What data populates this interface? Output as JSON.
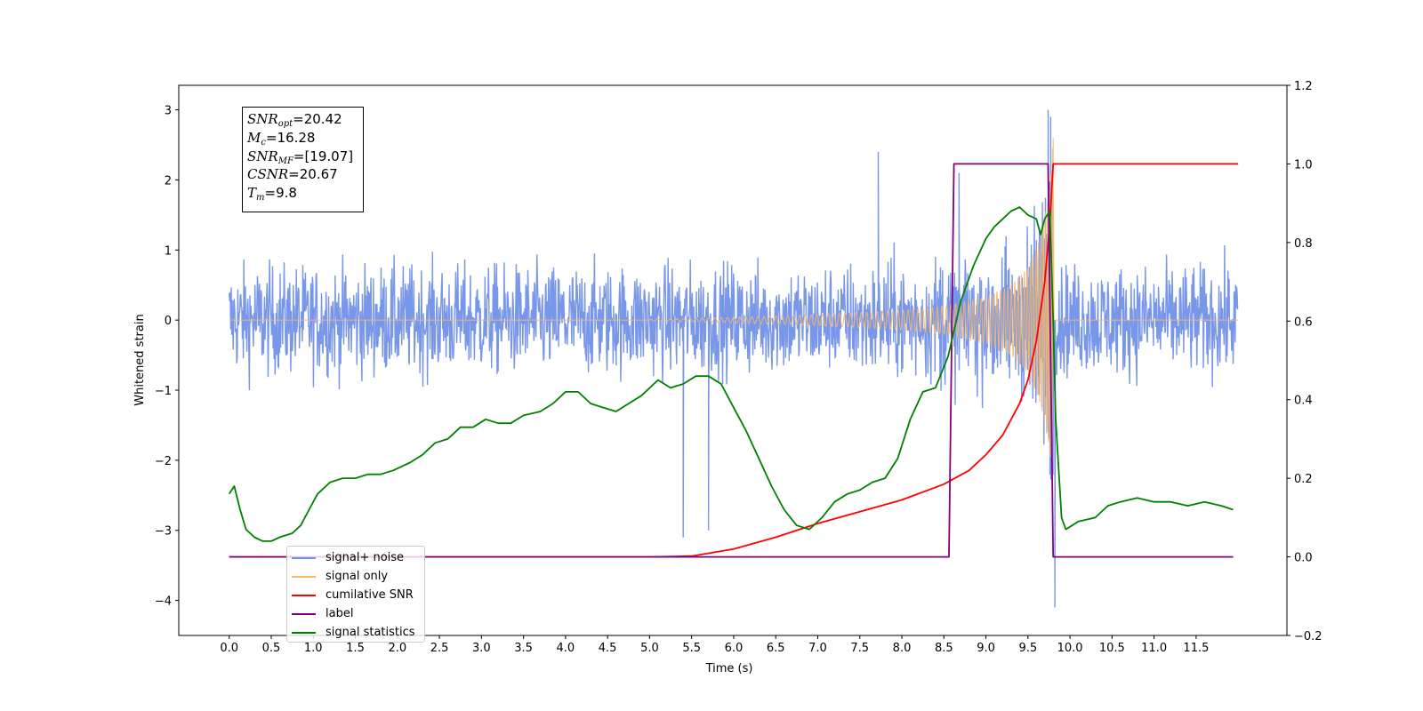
{
  "chart_data": {
    "type": "line",
    "xlabel": "Time (s)",
    "ylabel": "Whitened strain",
    "xlim": [
      -0.6,
      12.58
    ],
    "ylim": [
      -4.5,
      3.35
    ],
    "y2lim": [
      -0.2,
      1.2
    ],
    "x_ticks": [
      "0.0",
      "0.5",
      "1.0",
      "1.5",
      "2.0",
      "2.5",
      "3.0",
      "3.5",
      "4.0",
      "4.5",
      "5.0",
      "5.5",
      "6.0",
      "6.5",
      "7.0",
      "7.5",
      "8.0",
      "8.5",
      "9.0",
      "9.5",
      "10.0",
      "10.5",
      "11.0",
      "11.5"
    ],
    "y_ticks": [
      "3",
      "2",
      "1",
      "0",
      "−1",
      "−2",
      "−3",
      "−4"
    ],
    "y2_ticks": [
      "1.2",
      "1.0",
      "0.8",
      "0.6",
      "0.4",
      "0.2",
      "0.0",
      "−0.2"
    ],
    "annotation": {
      "snr_opt": {
        "sym": "SNR",
        "sub": "opt",
        "value": "=20.42"
      },
      "mc": {
        "sym": "M",
        "sub": "c",
        "value": "=16.28"
      },
      "snr_mf": {
        "sym": "SNR",
        "sub": "MF",
        "value": "=[19.07]"
      },
      "csnr": {
        "sym": "CSNR",
        "value": "=20.67"
      },
      "tm": {
        "sym": "T",
        "sub": "m",
        "value": "=9.8"
      }
    },
    "legend_position": "lower left",
    "grid": false,
    "series": [
      {
        "name": "signal+ noise",
        "axis": "left",
        "color": "#7291e8",
        "description": "whitened noise plus chirp, spans 0 to 12 s, amplitude mostly within ±1.5 with spikes to ±2.5",
        "envelope_x": [
          0,
          9.6,
          9.7,
          9.74,
          9.8,
          12
        ],
        "extremes": [
          [
            9.74,
            3.0
          ],
          [
            9.77,
            2.9
          ],
          [
            9.82,
            -4.1
          ],
          [
            5.4,
            -3.1
          ],
          [
            5.7,
            -3.0
          ],
          [
            7.72,
            2.4
          ],
          [
            8.68,
            2.1
          ]
        ]
      },
      {
        "name": "signal only",
        "axis": "left",
        "color": "#f6b86a",
        "description": "chirp waveform growing from ~0 near 5 s to peak amplitude ~2.6 at 9.8 s, zero after merger",
        "x": [
          5.0,
          6.0,
          7.0,
          8.0,
          8.5,
          9.0,
          9.3,
          9.5,
          9.65,
          9.75,
          9.8
        ],
        "amplitude": [
          0.01,
          0.04,
          0.08,
          0.14,
          0.2,
          0.33,
          0.5,
          0.75,
          1.2,
          1.8,
          2.6
        ]
      },
      {
        "name": "cumilative SNR",
        "axis": "right",
        "color": "#ff0000",
        "x": [
          0,
          5,
          5.5,
          6.0,
          6.5,
          7.0,
          7.5,
          8.0,
          8.5,
          8.8,
          9.0,
          9.2,
          9.4,
          9.5,
          9.6,
          9.7,
          9.76,
          9.8,
          12
        ],
        "y": [
          0,
          0,
          0.002,
          0.02,
          0.05,
          0.085,
          0.115,
          0.145,
          0.185,
          0.22,
          0.26,
          0.31,
          0.39,
          0.45,
          0.55,
          0.7,
          0.85,
          1.0,
          1.0
        ]
      },
      {
        "name": "label",
        "axis": "right",
        "color": "#800080",
        "x": [
          0,
          8.56,
          8.62,
          9.74,
          9.8,
          11.94
        ],
        "y": [
          0,
          0,
          1,
          1,
          0,
          0
        ]
      },
      {
        "name": "signal statistics",
        "axis": "right",
        "color": "#008000",
        "x": [
          0,
          0.06,
          0.13,
          0.2,
          0.3,
          0.4,
          0.5,
          0.6,
          0.75,
          0.85,
          0.95,
          1.05,
          1.2,
          1.35,
          1.5,
          1.65,
          1.8,
          1.95,
          2.05,
          2.15,
          2.3,
          2.45,
          2.6,
          2.75,
          2.9,
          3.05,
          3.2,
          3.35,
          3.5,
          3.7,
          3.85,
          4.0,
          4.15,
          4.3,
          4.45,
          4.6,
          4.75,
          4.9,
          5.1,
          5.25,
          5.4,
          5.55,
          5.7,
          5.85,
          6.0,
          6.15,
          6.3,
          6.45,
          6.6,
          6.75,
          6.9,
          7.05,
          7.2,
          7.35,
          7.5,
          7.65,
          7.8,
          7.95,
          8.1,
          8.25,
          8.4,
          8.55,
          8.7,
          8.85,
          9.0,
          9.1,
          9.2,
          9.3,
          9.4,
          9.5,
          9.6,
          9.65,
          9.7,
          9.76,
          9.8,
          9.83,
          9.9,
          9.95,
          10.1,
          10.3,
          10.45,
          10.6,
          10.8,
          11.0,
          11.2,
          11.4,
          11.6,
          11.8,
          11.94
        ],
        "y": [
          0.16,
          0.18,
          0.12,
          0.07,
          0.05,
          0.04,
          0.04,
          0.05,
          0.06,
          0.08,
          0.12,
          0.16,
          0.19,
          0.2,
          0.2,
          0.21,
          0.21,
          0.22,
          0.23,
          0.24,
          0.26,
          0.29,
          0.3,
          0.33,
          0.33,
          0.35,
          0.34,
          0.34,
          0.36,
          0.37,
          0.39,
          0.42,
          0.42,
          0.39,
          0.38,
          0.37,
          0.39,
          0.41,
          0.45,
          0.43,
          0.44,
          0.46,
          0.46,
          0.44,
          0.38,
          0.32,
          0.25,
          0.18,
          0.12,
          0.08,
          0.07,
          0.1,
          0.14,
          0.16,
          0.17,
          0.19,
          0.2,
          0.25,
          0.35,
          0.42,
          0.43,
          0.51,
          0.65,
          0.74,
          0.81,
          0.84,
          0.86,
          0.88,
          0.89,
          0.87,
          0.86,
          0.82,
          0.86,
          0.88,
          0.6,
          0.35,
          0.1,
          0.07,
          0.09,
          0.1,
          0.13,
          0.14,
          0.15,
          0.14,
          0.14,
          0.13,
          0.14,
          0.13,
          0.12
        ]
      }
    ]
  }
}
